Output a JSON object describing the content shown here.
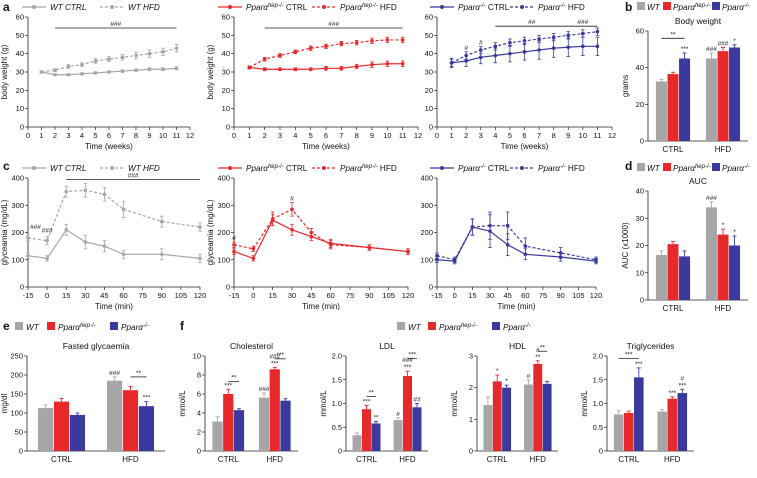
{
  "colors": {
    "wt": "#a6a6a8",
    "hep": "#e8292b",
    "ko": "#3a3a9e",
    "axis": "#222222"
  },
  "panel_labels": [
    "a",
    "b",
    "c",
    "d",
    "e",
    "f"
  ],
  "legend": {
    "wt_ctrl": "WT CTRL",
    "wt_hfd": "WT HFD",
    "hep_ctrl": "Pparα",
    "hep_sup": "hep-/-",
    "hep_ctrl_suffix": " CTRL",
    "hep_hfd_suffix": " HFD",
    "ko_ctrl": "Pparα",
    "ko_sup": "-/-",
    "ko_ctrl_suffix": " CTRL",
    "ko_hfd_suffix": " HFD",
    "wt": "WT",
    "hep": "Pparα",
    "ko": "Pparα"
  },
  "chart_data": [
    {
      "id": "a1",
      "type": "line",
      "xlabel": "Time (weeks)",
      "ylabel": "body weight (g)",
      "ylim": [
        0,
        60
      ],
      "yticks": [
        0,
        10,
        20,
        30,
        40,
        50,
        60
      ],
      "x": [
        1,
        2,
        3,
        4,
        5,
        6,
        7,
        8,
        9,
        10,
        11
      ],
      "series": [
        {
          "name": "WT CTRL",
          "color": "wt",
          "dashed": false,
          "values": [
            30,
            28.5,
            28.5,
            29,
            29.5,
            30,
            30.5,
            31,
            31.5,
            31.5,
            32
          ],
          "err": [
            0.5,
            0.5,
            0.5,
            0.5,
            0.6,
            0.6,
            0.7,
            0.7,
            0.8,
            0.8,
            0.8
          ]
        },
        {
          "name": "WT HFD",
          "color": "wt",
          "dashed": true,
          "values": [
            30,
            31,
            33,
            34,
            36,
            37,
            38,
            39,
            40,
            41,
            43
          ],
          "err": [
            0.5,
            0.8,
            1,
            1,
            1.2,
            1.3,
            1.5,
            1.8,
            2,
            2,
            2
          ]
        }
      ],
      "annotations": [
        {
          "text": "###",
          "from": 2,
          "to": 11,
          "y": 54
        }
      ]
    },
    {
      "id": "a2",
      "type": "line",
      "xlabel": "Time (weeks)",
      "ylabel": "body weight (g)",
      "ylim": [
        0,
        60
      ],
      "yticks": [
        0,
        10,
        20,
        30,
        40,
        50,
        60
      ],
      "x": [
        1,
        2,
        3,
        4,
        5,
        6,
        7,
        8,
        9,
        10,
        11
      ],
      "series": [
        {
          "name": "Pparα hep-/- CTRL",
          "color": "hep",
          "dashed": false,
          "values": [
            32.5,
            31.5,
            31.5,
            31.5,
            31.5,
            32,
            32,
            33,
            34,
            34.5,
            34.5
          ],
          "err": [
            0.8,
            0.8,
            0.8,
            0.8,
            0.8,
            1,
            1,
            1.2,
            1.5,
            1.5,
            1.5
          ]
        },
        {
          "name": "Pparα hep-/- HFD",
          "color": "hep",
          "dashed": true,
          "values": [
            32.5,
            37,
            39,
            41,
            43,
            44,
            45.5,
            46,
            47,
            47.5,
            47.5
          ],
          "err": [
            0.8,
            1,
            1,
            1,
            1.2,
            1.2,
            1.2,
            1.2,
            1.5,
            1.5,
            1.5
          ]
        }
      ],
      "annotations": [
        {
          "text": "###",
          "from": 2,
          "to": 11,
          "y": 54
        }
      ]
    },
    {
      "id": "a3",
      "type": "line",
      "xlabel": "Time (weeks)",
      "ylabel": "",
      "ylim": [
        0,
        60
      ],
      "yticks": [
        0,
        10,
        20,
        30,
        40,
        50,
        60
      ],
      "x": [
        1,
        2,
        3,
        4,
        5,
        6,
        7,
        8,
        9,
        10,
        11
      ],
      "series": [
        {
          "name": "Pparα-/- CTRL",
          "color": "ko",
          "dashed": false,
          "values": [
            35,
            36,
            38,
            39,
            40,
            41,
            42,
            43,
            43.5,
            44,
            44
          ],
          "err": [
            2.5,
            3,
            3.5,
            4,
            4.5,
            4.5,
            5,
            5,
            5,
            5,
            5
          ]
        },
        {
          "name": "Pparα-/- HFD",
          "color": "ko",
          "dashed": true,
          "values": [
            35,
            39,
            42,
            44,
            46,
            47,
            48,
            49,
            50,
            51,
            52
          ],
          "err": [
            2,
            2,
            2,
            2,
            2,
            2,
            2,
            2,
            2,
            2,
            2
          ]
        }
      ],
      "annotations": [
        {
          "text": "##",
          "from": 4,
          "to": 9,
          "y": 55
        },
        {
          "text": "###",
          "from": 9,
          "to": 11,
          "y": 55
        }
      ]
    },
    {
      "id": "b",
      "type": "bar",
      "title": "Body weight",
      "ylabel": "grams",
      "ylim": [
        0,
        60
      ],
      "yticks": [
        0,
        20,
        40,
        60
      ],
      "categories": [
        "CTRL",
        "HFD"
      ],
      "series": [
        {
          "name": "WT",
          "color": "wt",
          "values": [
            32.5,
            45
          ],
          "err": [
            1,
            3
          ]
        },
        {
          "name": "Pparα hep-/-",
          "color": "hep",
          "values": [
            36.5,
            49
          ],
          "err": [
            1,
            2
          ]
        },
        {
          "name": "Pparα -/-",
          "color": "ko",
          "values": [
            45,
            51
          ],
          "err": [
            3,
            1.5
          ]
        }
      ]
    },
    {
      "id": "c1",
      "type": "line",
      "xlabel": "Time (min)",
      "ylabel": "glyceamia (mg/dL)",
      "ylim": [
        0,
        400
      ],
      "yticks": [
        0,
        100,
        200,
        300,
        400
      ],
      "x": [
        -15,
        0,
        15,
        30,
        45,
        60,
        90,
        120
      ],
      "series": [
        {
          "name": "WT CTRL",
          "color": "wt",
          "dashed": false,
          "values": [
            115,
            105,
            210,
            165,
            150,
            120,
            120,
            105
          ],
          "err": [
            10,
            10,
            20,
            25,
            20,
            15,
            20,
            15
          ]
        },
        {
          "name": "WT HFD",
          "color": "wt",
          "dashed": true,
          "values": [
            180,
            170,
            350,
            355,
            340,
            285,
            240,
            220
          ],
          "err": [
            10,
            15,
            20,
            25,
            25,
            30,
            20,
            15
          ]
        }
      ],
      "annotations": [
        {
          "text": "###",
          "from": 15,
          "to": 120,
          "y": 395
        }
      ]
    },
    {
      "id": "c2",
      "type": "line",
      "xlabel": "Time (min)",
      "ylabel": "glyceamia (mg/dL)",
      "ylim": [
        0,
        400
      ],
      "yticks": [
        0,
        100,
        200,
        300,
        400
      ],
      "x": [
        -15,
        0,
        15,
        30,
        45,
        60,
        90,
        120
      ],
      "series": [
        {
          "name": "Pparα hep-/- CTRL",
          "color": "hep",
          "dashed": false,
          "values": [
            130,
            105,
            245,
            210,
            185,
            160,
            145,
            130
          ],
          "err": [
            10,
            10,
            20,
            20,
            15,
            15,
            10,
            10
          ]
        },
        {
          "name": "Pparα hep-/- HFD",
          "color": "hep",
          "dashed": true,
          "values": [
            155,
            140,
            250,
            285,
            200,
            155,
            145,
            130
          ],
          "err": [
            10,
            10,
            25,
            25,
            15,
            15,
            10,
            10
          ]
        }
      ]
    },
    {
      "id": "c3",
      "type": "line",
      "xlabel": "Time (min)",
      "ylabel": "",
      "ylim": [
        0,
        400
      ],
      "yticks": [
        0,
        100,
        200,
        300,
        400
      ],
      "x": [
        -15,
        0,
        15,
        30,
        45,
        60,
        90,
        120
      ],
      "series": [
        {
          "name": "Pparα-/- CTRL",
          "color": "ko",
          "dashed": false,
          "values": [
            100,
            95,
            220,
            205,
            155,
            120,
            110,
            95
          ],
          "err": [
            10,
            10,
            30,
            60,
            40,
            20,
            15,
            10
          ]
        },
        {
          "name": "Pparα-/- HFD",
          "color": "ko",
          "dashed": true,
          "values": [
            115,
            100,
            220,
            225,
            225,
            150,
            125,
            100
          ],
          "err": [
            10,
            10,
            30,
            50,
            50,
            30,
            20,
            10
          ]
        }
      ]
    },
    {
      "id": "d",
      "type": "bar",
      "title": "AUC",
      "ylabel": "AUC (x1000)",
      "ylim": [
        0,
        40
      ],
      "yticks": [
        0,
        10,
        20,
        30,
        40
      ],
      "categories": [
        "CTRL",
        "HFD"
      ],
      "series": [
        {
          "name": "WT",
          "color": "wt",
          "values": [
            16.5,
            34
          ],
          "err": [
            1.5,
            2
          ]
        },
        {
          "name": "Pparα hep-/-",
          "color": "hep",
          "values": [
            20.5,
            24
          ],
          "err": [
            1,
            2
          ]
        },
        {
          "name": "Pparα -/-",
          "color": "ko",
          "values": [
            16,
            20
          ],
          "err": [
            2,
            3.5
          ]
        }
      ]
    },
    {
      "id": "e",
      "type": "bar",
      "title": "Fasted glycaemia",
      "ylabel": "mg/dl",
      "ylim": [
        0,
        250
      ],
      "yticks": [
        0,
        50,
        100,
        150,
        200,
        250
      ],
      "categories": [
        "CTRL",
        "HFD"
      ],
      "series": [
        {
          "name": "WT",
          "color": "wt",
          "values": [
            113,
            185
          ],
          "err": [
            8,
            10
          ]
        },
        {
          "name": "Pparα hep-/-",
          "color": "hep",
          "values": [
            130,
            160
          ],
          "err": [
            8,
            10
          ]
        },
        {
          "name": "Pparα -/-",
          "color": "ko",
          "values": [
            95,
            118
          ],
          "err": [
            5,
            12
          ]
        }
      ]
    },
    {
      "id": "f1",
      "type": "bar",
      "title": "Cholesterol",
      "ylabel": "mmol/L",
      "ylim": [
        0,
        10
      ],
      "yticks": [
        0,
        2,
        4,
        6,
        8,
        10
      ],
      "categories": [
        "CTRL",
        "HFD"
      ],
      "series": [
        {
          "name": "WT",
          "color": "wt",
          "values": [
            3.1,
            5.6
          ],
          "err": [
            0.5,
            0.5
          ]
        },
        {
          "name": "Pparα hep-/-",
          "color": "hep",
          "values": [
            6.0,
            8.6
          ],
          "err": [
            0.5,
            0.2
          ]
        },
        {
          "name": "Pparα -/-",
          "color": "ko",
          "values": [
            4.3,
            5.3
          ],
          "err": [
            0.15,
            0.2
          ]
        }
      ]
    },
    {
      "id": "f2",
      "type": "bar",
      "title": "LDL",
      "ylabel": "mmol/L",
      "ylim": [
        0,
        2.0
      ],
      "yticks": [
        0,
        0.5,
        1.0,
        1.5,
        2.0
      ],
      "yticklabels": [
        "0",
        "0.5",
        "1.0",
        "1.5",
        "2.0"
      ],
      "categories": [
        "CTRL",
        "HFD"
      ],
      "series": [
        {
          "name": "WT",
          "color": "wt",
          "values": [
            0.33,
            0.65
          ],
          "err": [
            0.05,
            0.05
          ]
        },
        {
          "name": "Pparα hep-/-",
          "color": "hep",
          "values": [
            0.88,
            1.58
          ],
          "err": [
            0.08,
            0.1
          ]
        },
        {
          "name": "Pparα -/-",
          "color": "ko",
          "values": [
            0.58,
            0.92
          ],
          "err": [
            0.04,
            0.08
          ]
        }
      ]
    },
    {
      "id": "f3",
      "type": "bar",
      "title": "HDL",
      "ylabel": "mmol/L",
      "ylim": [
        0,
        3
      ],
      "yticks": [
        0,
        1,
        2,
        3
      ],
      "categories": [
        "CTRL",
        "HFD"
      ],
      "series": [
        {
          "name": "WT",
          "color": "wt",
          "values": [
            1.45,
            2.1
          ],
          "err": [
            0.25,
            0.15
          ]
        },
        {
          "name": "Pparα hep-/-",
          "color": "hep",
          "values": [
            2.2,
            2.75
          ],
          "err": [
            0.2,
            0.1
          ]
        },
        {
          "name": "Pparα -/-",
          "color": "ko",
          "values": [
            2.0,
            2.12
          ],
          "err": [
            0.08,
            0.08
          ]
        }
      ]
    },
    {
      "id": "f4",
      "type": "bar",
      "title": "Triglycerides",
      "ylabel": "mmol/L",
      "ylim": [
        0,
        2.0
      ],
      "yticks": [
        0,
        0.5,
        1.0,
        1.5,
        2.0
      ],
      "yticklabels": [
        "0",
        "0.5",
        "1.0",
        "1.5",
        "2.0"
      ],
      "categories": [
        "CTRL",
        "HFD"
      ],
      "series": [
        {
          "name": "WT",
          "color": "wt",
          "values": [
            0.77,
            0.83
          ],
          "err": [
            0.08,
            0.04
          ]
        },
        {
          "name": "Pparα hep-/-",
          "color": "hep",
          "values": [
            0.8,
            1.1
          ],
          "err": [
            0.04,
            0.04
          ]
        },
        {
          "name": "Pparα -/-",
          "color": "ko",
          "values": [
            1.55,
            1.22
          ],
          "err": [
            0.2,
            0.08
          ]
        }
      ]
    }
  ],
  "sig": {
    "b": {
      "ctrl_bar": "**",
      "hep_ctrl": "***",
      "wt_hfd": "###",
      "hep_hfd": "###",
      "ko_hfd": "*"
    },
    "d": {
      "wt_hfd": "###",
      "hep_hfd": "*",
      "ko_hfd": "*"
    },
    "e": {
      "wt_hfd": "###",
      "hfd_bar": "**",
      "ko_hfd": "***"
    },
    "f1": {
      "hep_ctrl": "***",
      "ctrl_bar": "**",
      "wt_hfd": "###",
      "hep_hfd_hash": "###",
      "hep_hfd_star": "***",
      "hfd_bar": "***"
    },
    "f2": {
      "hep_ctrl": "***",
      "ctrl_bar": "**",
      "ko_ctrl": "**",
      "wt_hfd": "#",
      "hep_hfd_hash": "###",
      "hep_hfd_star": "***",
      "ko_hfd": "##",
      "hfd_bar": "***"
    },
    "f3": {
      "hep_ctrl": "*",
      "ko_ctrl": "*",
      "wt_hfd": "#",
      "hep_hfd_hash": "#",
      "hep_hfd_star": "**",
      "hfd_bar": "**"
    },
    "f4": {
      "ctrl_bar": "***",
      "ko_ctrl": "***",
      "hep_hfd": "***",
      "ko_hfd_hash": "#",
      "ko_hfd_star": "***"
    },
    "a3": {
      "h2": "#",
      "h3": "#"
    },
    "c1": {
      "m15": "###",
      "m0": "###"
    },
    "c2": {
      "m15": "#",
      "m30": "#"
    }
  }
}
